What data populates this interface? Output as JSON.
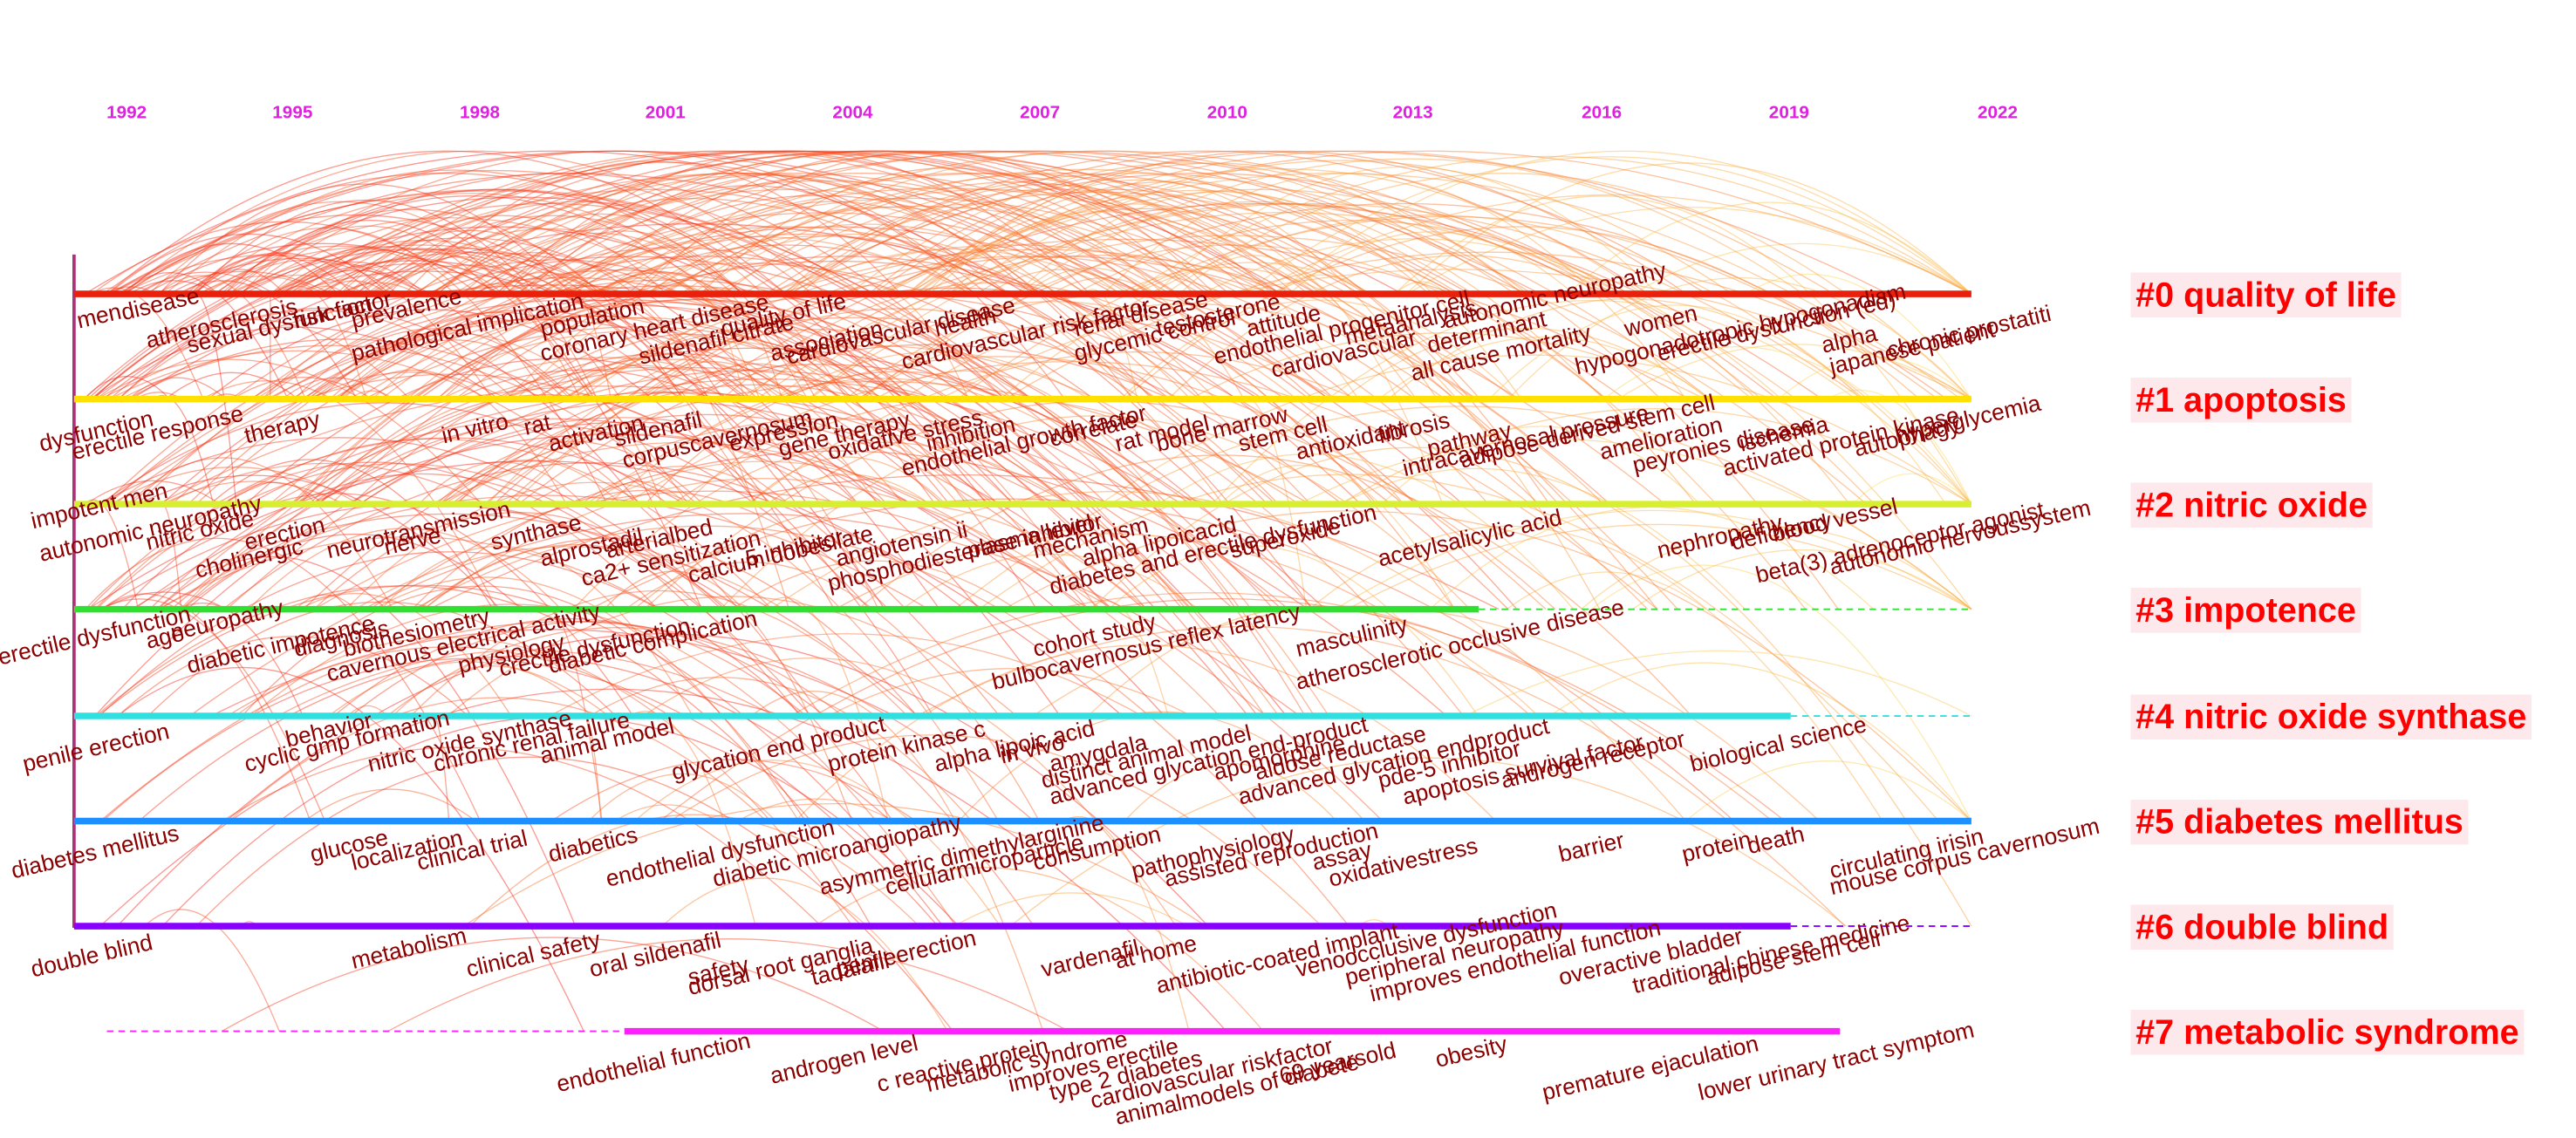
{
  "years": [
    "1992",
    "1995",
    "1998",
    "2001",
    "2004",
    "2007",
    "2010",
    "2013",
    "2016",
    "2019",
    "2022"
  ],
  "clusters": [
    {
      "label": "#0 quality of life",
      "keywords": [
        "men",
        "disease",
        "atherosclerosis",
        "sexual dysfunction",
        "risk factor",
        "prevalence",
        "pathological implication",
        "population",
        "coronary heart disease",
        "sildenafil citrate",
        "quality of life",
        "association",
        "cardiovascular disease",
        "health",
        "cardiovascular risk factor",
        "renal disease",
        "glycemic control",
        "testosterone",
        "attitude",
        "endothelial progenitor cell",
        "metaanalysis",
        "autonomic neuropathy",
        "cardiovascular",
        "determinant",
        "all cause mortality",
        "women",
        "hypogonadotropic hypogonadism",
        "erectile dysfunction (ed)",
        "alpha",
        "japanese patient",
        "chronic prostatiti"
      ]
    },
    {
      "label": "#1 apoptosis",
      "keywords": [
        "dysfunction",
        "erectile response",
        "therapy",
        "in vitro",
        "rat",
        "activation",
        "sildenafil",
        "corpuscavernosum",
        "expression",
        "gene therapy",
        "oxidative stress",
        "inhibition",
        "correlate",
        "endothelial growth factor",
        "rat model",
        "bone marrow",
        "stem cell",
        "antioxidant",
        "fibrosis",
        "pathway",
        "intracavernosal pressure",
        "adipose-derived stem cell",
        "amelioration",
        "peyronies disease",
        "ischemia",
        "activated protein kinase",
        "autophagy",
        "hyperglycemia"
      ]
    },
    {
      "label": "#2 nitric oxide",
      "keywords": [
        "impotent men",
        "autonomic neuropathy",
        "nitric oxide",
        "erection",
        "cholinergic",
        "neurotransmission",
        "nerve",
        "synthase",
        "alprostadil",
        "arterialbed",
        "ca2+ sensitization",
        "calcium dobesilate",
        "5 inhibitor",
        "angiotensin ii",
        "phosphodiesterase inhibitor",
        "plasma level",
        "mechanism",
        "alpha lipoicacid",
        "diabetes and erectile dysfunction",
        "superoxide",
        "acetylsalicylic acid",
        "nephropathy",
        "deficiency",
        "blood vessel",
        "beta(3) adrenoceptor agonist",
        "autonomic nervoussystem"
      ]
    },
    {
      "label": "#3 impotence",
      "keywords": [
        "erectile dysfunction",
        "age",
        "neuropathy",
        "diabetic impotence",
        "diagnosis",
        "biothesiometry",
        "cavernous electrical activity",
        "physiology",
        "crectile dysfunction",
        "diabetic complication",
        "cohort study",
        "bulbocavernosus reflex latency",
        "masculinity",
        "atherosclerotic occlusive disease"
      ]
    },
    {
      "label": "#4 nitric oxide synthase",
      "keywords": [
        "penile erection",
        "behavior",
        "cyclic gmp formation",
        "nitric oxide synthase",
        "chronic renal failure",
        "animal model",
        "glycation end product",
        "protein kinase c",
        "alpha lipoic acid",
        "in vivo",
        "amygdala",
        "distinct animal model",
        "advanced glycation end-product",
        "apomorphine",
        "aldose reductase",
        "advanced glycation endproduct",
        "pde-5 inhibitor",
        "apoptosis survival factor",
        "androgen receptor",
        "biological science"
      ]
    },
    {
      "label": "#5 diabetes mellitus",
      "keywords": [
        "diabetes mellitus",
        "glucose",
        "localization",
        "clinical trial",
        "diabetics",
        "endothelial dysfunction",
        "diabetic microangiopathy",
        "asymmetric dimethylarginine",
        "cellularmicroparticle",
        "consumption",
        "pathophysiology",
        "assisted reproduction",
        "assay",
        "oxidativestress",
        "barrier",
        "protein",
        "death",
        "circulating irisin",
        "mouse corpus cavernosum"
      ]
    },
    {
      "label": "#6 double blind",
      "keywords": [
        "double blind",
        "metabolism",
        "clinical safety",
        "oral sildenafil",
        "safety",
        "dorsal root ganglia",
        "tadalafil",
        "penileerection",
        "vardenafil",
        "at home",
        "antibiotic-coated implant",
        "venoocclusive dysfunction",
        "peripheral neuropathy",
        "improves endothelial function",
        "overactive bladder",
        "traditional chinese medicine",
        "adipose stem cell"
      ]
    },
    {
      "label": "#7 metabolic syndrome",
      "keywords": [
        "endothelial function",
        "androgen level",
        "c reactive protein",
        "metabolic syndrome",
        "improves erectile",
        "type 2 diabetes",
        "cardiovascular riskfactor",
        "animalmodels of diabete",
        "69 yearsold",
        "obesity",
        "premature ejaculation",
        "lower urinary tract symptom"
      ]
    }
  ]
}
